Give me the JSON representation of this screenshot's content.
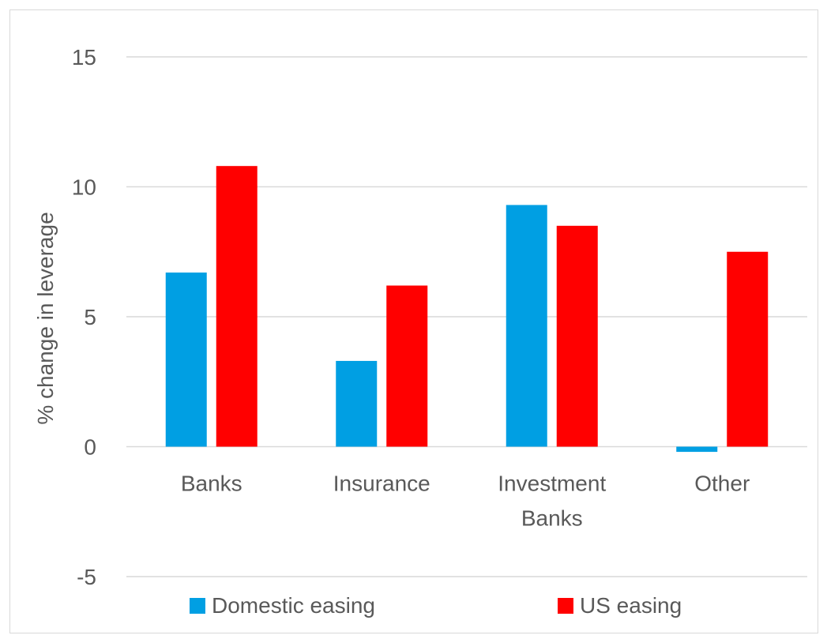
{
  "chart_data": {
    "type": "bar",
    "title": "",
    "xlabel": "",
    "ylabel": "% change in leverage",
    "ylim": [
      -5,
      15
    ],
    "yticks": [
      -5,
      0,
      5,
      10,
      15
    ],
    "grid": true,
    "legend_position": "bottom",
    "categories": [
      {
        "lines": [
          "Banks"
        ]
      },
      {
        "lines": [
          "Insurance"
        ]
      },
      {
        "lines": [
          "Investment",
          "Banks"
        ]
      },
      {
        "lines": [
          "Other"
        ]
      }
    ],
    "series": [
      {
        "name": "Domestic easing",
        "color": "#009fe3",
        "values": [
          6.7,
          3.3,
          9.3,
          -0.2
        ]
      },
      {
        "name": "US easing",
        "color": "#ff0000",
        "values": [
          10.8,
          6.2,
          8.5,
          7.5
        ]
      }
    ]
  }
}
